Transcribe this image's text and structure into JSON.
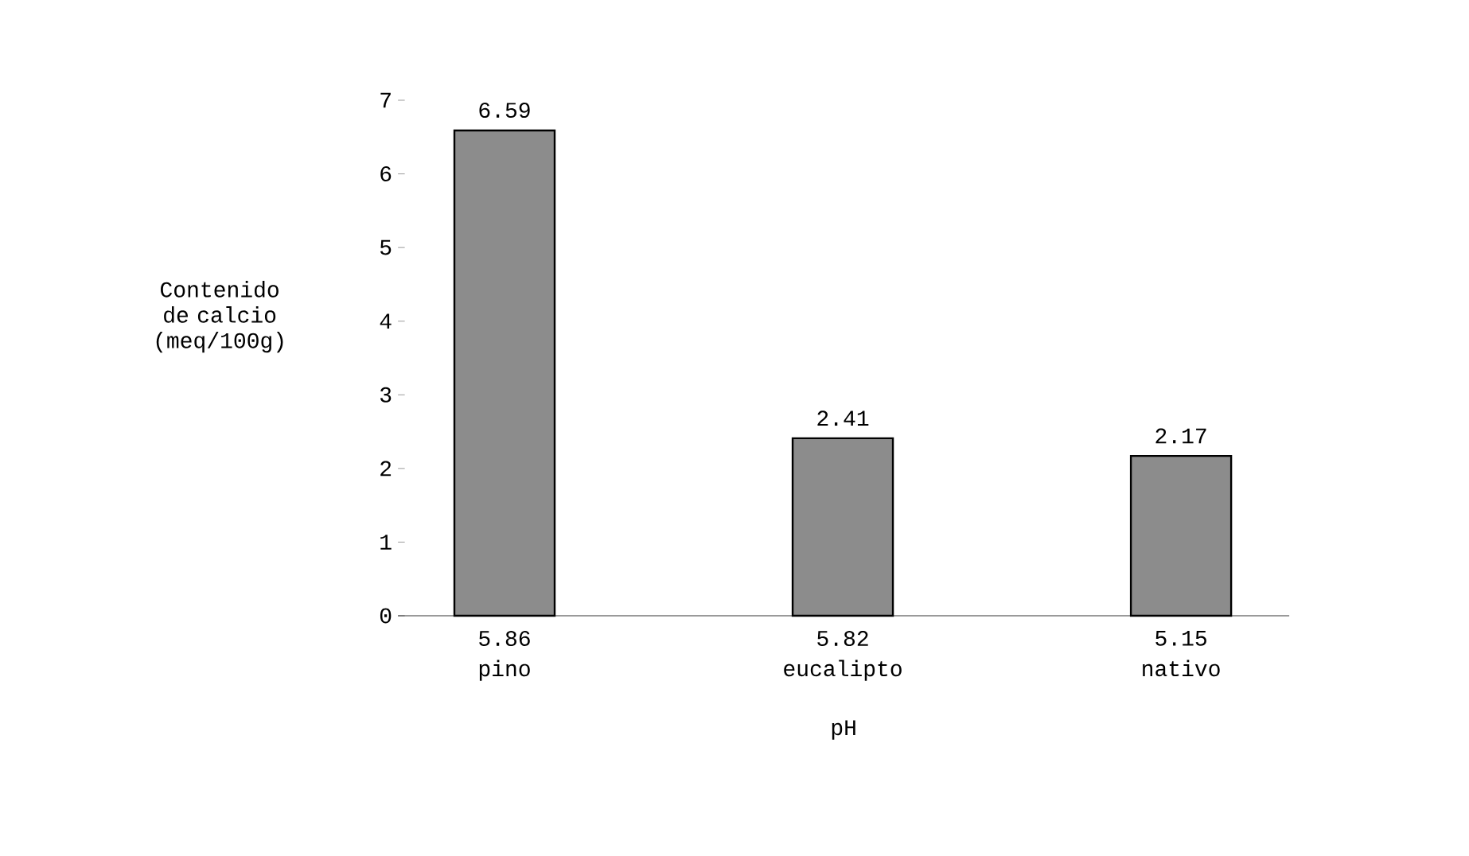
{
  "chart_data": {
    "type": "bar",
    "xlabel": "pH",
    "ylabel": "Contenido de calcio (meq/100g)",
    "categories": [
      "pino",
      "eucalipto",
      "nativo"
    ],
    "values": [
      6.59,
      2.41,
      2.17
    ],
    "color": "#8c8c8c",
    "data_labels": true,
    "ylim": [
      0,
      7
    ],
    "yticks": [
      0,
      1,
      2,
      3,
      4,
      5,
      6,
      7
    ],
    "annotations": [
      "5.86",
      "5.82",
      "5.15"
    ]
  }
}
